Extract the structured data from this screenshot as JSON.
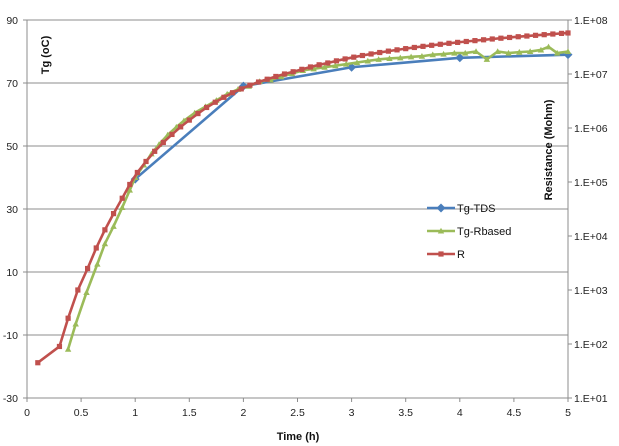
{
  "chart_data": {
    "type": "line",
    "xlabel": "Time (h)",
    "ylabel": "Tg (oC)",
    "y2label": "Resistance (Mohm)",
    "xlim": [
      0,
      5
    ],
    "ylim": [
      -30,
      90
    ],
    "y2_log": true,
    "y2lim": [
      10,
      100000000
    ],
    "x_ticks": [
      "0",
      "0.5",
      "1",
      "1.5",
      "2",
      "2.5",
      "3",
      "3.5",
      "4",
      "4.5",
      "5"
    ],
    "y_ticks": [
      "-30",
      "-10",
      "10",
      "30",
      "50",
      "70",
      "90"
    ],
    "y2_ticks": [
      "1.E+01",
      "1.E+02",
      "1.E+03",
      "1.E+04",
      "1.E+05",
      "1.E+06",
      "1.E+07",
      "1.E+08"
    ],
    "grid": "horizontal",
    "legend_position": "right-center",
    "series": [
      {
        "name": "Tg-TDS",
        "axis": "left",
        "color": "#4a7ebb",
        "marker": "diamond",
        "x": [
          1.0,
          2.0,
          3.0,
          4.0,
          5.0
        ],
        "y": [
          39.5,
          69.0,
          75.0,
          78.0,
          79.0
        ]
      },
      {
        "name": "Tg-Rbased",
        "axis": "left",
        "color": "#9bbb59",
        "marker": "triangle",
        "x": [
          0.38,
          0.45,
          0.55,
          0.65,
          0.72,
          0.8,
          0.88,
          0.95,
          1.0,
          1.08,
          1.15,
          1.22,
          1.3,
          1.38,
          1.45,
          1.55,
          1.65,
          1.75,
          1.85,
          1.95,
          2.05,
          2.15,
          2.25,
          2.35,
          2.45,
          2.55,
          2.65,
          2.75,
          2.85,
          2.95,
          3.05,
          3.15,
          3.25,
          3.35,
          3.45,
          3.55,
          3.65,
          3.75,
          3.85,
          3.95,
          4.05,
          4.15,
          4.25,
          4.35,
          4.45,
          4.55,
          4.65,
          4.75,
          4.82,
          4.9,
          5.0
        ],
        "y": [
          -14.5,
          -6.5,
          3.5,
          12.5,
          19.0,
          24.5,
          30.5,
          36.0,
          40.0,
          44.0,
          47.5,
          50.5,
          53.5,
          56.0,
          58.0,
          60.5,
          62.5,
          64.5,
          66.5,
          68.0,
          69.0,
          70.5,
          71.0,
          72.0,
          73.0,
          74.0,
          74.5,
          75.0,
          75.5,
          76.0,
          76.5,
          77.0,
          77.5,
          77.8,
          78.0,
          78.3,
          78.5,
          79.0,
          79.2,
          79.5,
          79.5,
          80.0,
          77.5,
          80.0,
          79.5,
          79.8,
          80.0,
          80.5,
          81.5,
          79.5,
          80.0
        ]
      },
      {
        "name": "R",
        "axis": "right",
        "color": "#c0504d",
        "marker": "square",
        "x": [
          0.1,
          0.3,
          0.38,
          0.47,
          0.56,
          0.64,
          0.72,
          0.8,
          0.88,
          0.95,
          1.02,
          1.1,
          1.18,
          1.26,
          1.34,
          1.42,
          1.5,
          1.58,
          1.66,
          1.74,
          1.82,
          1.9,
          1.98,
          2.06,
          2.14,
          2.22,
          2.3,
          2.38,
          2.46,
          2.54,
          2.62,
          2.7,
          2.78,
          2.86,
          2.94,
          3.02,
          3.1,
          3.18,
          3.26,
          3.34,
          3.42,
          3.5,
          3.58,
          3.66,
          3.74,
          3.82,
          3.9,
          3.98,
          4.06,
          4.14,
          4.22,
          4.3,
          4.38,
          4.46,
          4.54,
          4.62,
          4.7,
          4.78,
          4.86,
          4.94,
          5.0
        ],
        "y": [
          45,
          90,
          300,
          1000,
          2500,
          6000,
          13000,
          26000,
          50000,
          90000,
          150000,
          240000,
          370000,
          540000,
          760000,
          1050000,
          1400000,
          1850000,
          2400000,
          3000000,
          3700000,
          4500000,
          5300000,
          6200000,
          7100000,
          8000000,
          9000000,
          10000000,
          11000000,
          12200000,
          13500000,
          14800000,
          16000000,
          17500000,
          19000000,
          20500000,
          22000000,
          23500000,
          25000000,
          26500000,
          28000000,
          29500000,
          31000000,
          32500000,
          34000000,
          35500000,
          37000000,
          38500000,
          40000000,
          41500000,
          43000000,
          44500000,
          46000000,
          47500000,
          49000000,
          50500000,
          52000000,
          53500000,
          55000000,
          56500000,
          57500000
        ]
      }
    ]
  }
}
